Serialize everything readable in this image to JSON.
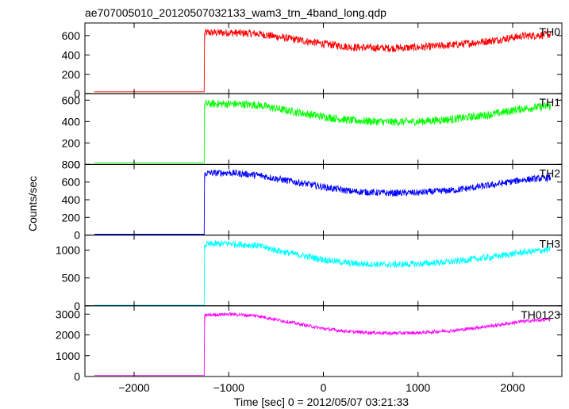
{
  "chart_data": {
    "type": "line",
    "title": "ae707005010_20120507032133_wam3_trn_4band_long.qdp",
    "xlabel": "Time [sec] 0 = 2012/05/07 03:21:33",
    "ylabel": "Counts/sec",
    "xlim": [
      -2520,
      2520
    ],
    "x_ticks": [
      -2000,
      -1000,
      0,
      1000,
      2000
    ],
    "grid": false,
    "panels": [
      {
        "name": "TH0",
        "color": "#ff0000",
        "ylim": [
          0,
          730
        ],
        "y_ticks": [
          0,
          200,
          400,
          600
        ],
        "noise": 40,
        "x": [
          -2420,
          -1260,
          -1255,
          -1000,
          -700,
          -400,
          0,
          300,
          700,
          1000,
          1400,
          1800,
          2100,
          2400
        ],
        "y": [
          20,
          20,
          630,
          630,
          620,
          575,
          515,
          480,
          470,
          478,
          505,
          550,
          595,
          610
        ]
      },
      {
        "name": "TH1",
        "color": "#00ff00",
        "ylim": [
          0,
          660
        ],
        "y_ticks": [
          0,
          200,
          400,
          600
        ],
        "noise": 38,
        "x": [
          -2420,
          -1260,
          -1255,
          -1000,
          -700,
          -400,
          0,
          300,
          700,
          1000,
          1400,
          1800,
          2100,
          2400
        ],
        "y": [
          15,
          15,
          565,
          565,
          555,
          505,
          445,
          410,
          395,
          400,
          425,
          470,
          520,
          545
        ]
      },
      {
        "name": "TH2",
        "color": "#0000ff",
        "ylim": [
          0,
          800
        ],
        "y_ticks": [
          0,
          200,
          400,
          600,
          800
        ],
        "noise": 38,
        "x": [
          -2420,
          -1260,
          -1255,
          -1000,
          -700,
          -400,
          0,
          300,
          700,
          1000,
          1400,
          1800,
          2100,
          2400
        ],
        "y": [
          10,
          10,
          700,
          705,
          680,
          620,
          545,
          495,
          475,
          480,
          510,
          570,
          625,
          650
        ]
      },
      {
        "name": "TH3",
        "color": "#00ffff",
        "ylim": [
          0,
          1270
        ],
        "y_ticks": [
          0,
          500,
          1000
        ],
        "noise": 60,
        "x": [
          -2420,
          -1260,
          -1255,
          -1000,
          -700,
          -400,
          0,
          300,
          700,
          1000,
          1400,
          1800,
          2100,
          2400
        ],
        "y": [
          10,
          10,
          1100,
          1120,
          1080,
          960,
          830,
          760,
          740,
          750,
          800,
          880,
          960,
          1010
        ]
      },
      {
        "name": "TH0123",
        "color": "#ff00ff",
        "ylim": [
          0,
          3400
        ],
        "y_ticks": [
          0,
          1000,
          2000,
          3000
        ],
        "noise": 80,
        "x": [
          -2420,
          -1260,
          -1255,
          -1000,
          -700,
          -400,
          0,
          300,
          700,
          1000,
          1400,
          1800,
          2100,
          2400
        ],
        "y": [
          50,
          50,
          2950,
          3000,
          2920,
          2650,
          2300,
          2150,
          2080,
          2100,
          2220,
          2450,
          2650,
          2750
        ]
      }
    ]
  }
}
